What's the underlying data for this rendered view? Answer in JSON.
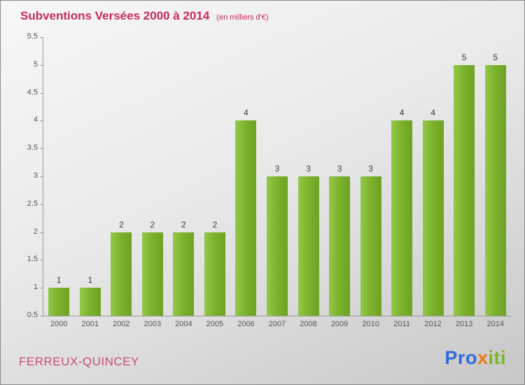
{
  "header": {
    "title": "Subventions Versées 2000 à 2014",
    "subtitle": "(en milliers d'€)"
  },
  "footer": {
    "commune": "FERREUX-QUINCEY",
    "logo_letters": [
      {
        "ch": "P",
        "color": "#2f6bd8"
      },
      {
        "ch": "r",
        "color": "#2f6bd8"
      },
      {
        "ch": "o",
        "color": "#2f6bd8"
      },
      {
        "ch": "x",
        "color": "#f07818"
      },
      {
        "ch": "i",
        "color": "#76b82a"
      },
      {
        "ch": "t",
        "color": "#76b82a"
      },
      {
        "ch": "i",
        "color": "#76b82a"
      }
    ]
  },
  "chart_data": {
    "type": "bar",
    "title": "Subventions Versées 2000 à 2014",
    "subtitle": "(en milliers d'€)",
    "categories": [
      "2000",
      "2001",
      "2002",
      "2003",
      "2004",
      "2005",
      "2006",
      "2007",
      "2008",
      "2009",
      "2010",
      "2011",
      "2012",
      "2013",
      "2014"
    ],
    "values": [
      1,
      1,
      2,
      2,
      2,
      2,
      4,
      3,
      3,
      3,
      3,
      4,
      4,
      5,
      5
    ],
    "xlabel": "",
    "ylabel": "",
    "ylim": [
      0.5,
      5.5
    ],
    "ytick_step": 0.5,
    "bar_color": "#7db32d",
    "grid": false,
    "legend": false,
    "data_labels": true
  },
  "colors": {
    "accent_title": "#c8295f",
    "bar_green": "#7db32d",
    "axis_gray": "#999999"
  }
}
